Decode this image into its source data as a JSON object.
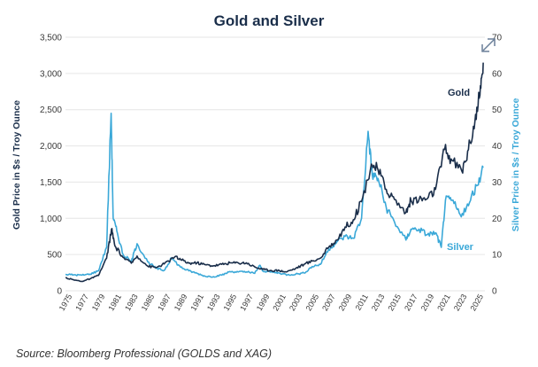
{
  "chart_data": {
    "type": "line",
    "title": "Gold and Silver",
    "ylabel_left": "Gold Price in $s / Troy Ounce",
    "ylabel_right": "Silver Price in $s / Troy Ounce",
    "ylim_left": [
      0,
      3500
    ],
    "ylim_right": [
      0,
      70
    ],
    "yticks_left": [
      "0",
      "500",
      "1,000",
      "1,500",
      "2,000",
      "2,500",
      "3,000",
      "3,500"
    ],
    "yticks_left_values": [
      0,
      500,
      1000,
      1500,
      2000,
      2500,
      3000,
      3500
    ],
    "yticks_right": [
      "0",
      "10",
      "20",
      "30",
      "40",
      "50",
      "60",
      "70"
    ],
    "yticks_right_values": [
      0,
      10,
      20,
      30,
      40,
      50,
      60,
      70
    ],
    "xlim": [
      1974.5,
      2025.5
    ],
    "xticks": [
      "1975",
      "1977",
      "1979",
      "1981",
      "1983",
      "1985",
      "1987",
      "1989",
      "1991",
      "1993",
      "1995",
      "1997",
      "1999",
      "2001",
      "2003",
      "2005",
      "2007",
      "2009",
      "2011",
      "2013",
      "2015",
      "2017",
      "2019",
      "2021",
      "2023",
      "2025"
    ],
    "xticks_values": [
      1975,
      1977,
      1979,
      1981,
      1983,
      1985,
      1987,
      1989,
      1991,
      1993,
      1995,
      1997,
      1999,
      2001,
      2003,
      2005,
      2007,
      2009,
      2011,
      2013,
      2015,
      2017,
      2019,
      2021,
      2023,
      2025
    ],
    "legend_gold": "Gold",
    "legend_silver": "Silver",
    "colors": {
      "gold": "#1a2e4a",
      "silver": "#3aa8d8",
      "grid": "#e6e6e6",
      "title": "#1a2e4a"
    },
    "series": [
      {
        "name": "Gold",
        "axis": "left",
        "x": [
          1974.5,
          1975.5,
          1976.5,
          1977.5,
          1978.5,
          1979.5,
          1980.1,
          1980.5,
          1981.5,
          1982.5,
          1983.2,
          1984.5,
          1985.5,
          1986.5,
          1987.8,
          1988.5,
          1989.5,
          1990.5,
          1991.5,
          1992.5,
          1993.5,
          1994.5,
          1995.5,
          1996.5,
          1997.5,
          1998.5,
          1999.5,
          2000.5,
          2001.3,
          2002.5,
          2003.5,
          2004.5,
          2005.5,
          2006.5,
          2007.5,
          2008.5,
          2009.5,
          2010.5,
          2011.7,
          2012.5,
          2013.5,
          2014.5,
          2015.9,
          2016.5,
          2017.5,
          2018.5,
          2019.5,
          2020.6,
          2021.5,
          2022.7,
          2023.5,
          2024.3,
          2024.9,
          2025.3
        ],
        "y": [
          180,
          150,
          130,
          165,
          210,
          450,
          850,
          620,
          460,
          380,
          480,
          340,
          320,
          370,
          470,
          430,
          380,
          385,
          360,
          345,
          365,
          385,
          385,
          385,
          330,
          295,
          280,
          280,
          260,
          310,
          365,
          410,
          450,
          600,
          700,
          880,
          980,
          1230,
          1750,
          1670,
          1400,
          1260,
          1080,
          1250,
          1260,
          1270,
          1400,
          1950,
          1800,
          1650,
          1950,
          2350,
          2700,
          3150
        ]
      },
      {
        "name": "Silver",
        "axis": "right",
        "x": [
          1974.5,
          1975.5,
          1976.5,
          1977.5,
          1978.5,
          1979.5,
          1980.05,
          1980.3,
          1980.8,
          1981.5,
          1982.5,
          1983.2,
          1984.5,
          1985.5,
          1986.5,
          1987.4,
          1988.5,
          1989.5,
          1990.5,
          1991.5,
          1992.5,
          1993.5,
          1994.5,
          1995.5,
          1996.5,
          1997.5,
          1998.1,
          1998.5,
          1999.5,
          2000.5,
          2001.5,
          2002.5,
          2003.5,
          2004.5,
          2005.5,
          2006.5,
          2007.5,
          2008.5,
          2009.5,
          2010.5,
          2011.3,
          2011.8,
          2012.5,
          2013.5,
          2014.5,
          2015.9,
          2016.5,
          2017.5,
          2018.5,
          2019.5,
          2020.2,
          2020.7,
          2021.5,
          2022.5,
          2023.5,
          2024.5,
          2025.3
        ],
        "y": [
          4.5,
          4.4,
          4.3,
          4.6,
          5.5,
          12,
          49,
          20,
          16,
          10,
          8,
          13,
          8,
          6.2,
          5.6,
          9,
          6.5,
          5.5,
          4.8,
          4.0,
          3.9,
          4.3,
          5.3,
          5.2,
          5.2,
          4.8,
          7,
          5.5,
          5.2,
          4.9,
          4.4,
          4.6,
          4.9,
          6.7,
          7.3,
          11.5,
          13.5,
          15,
          14.5,
          20,
          44,
          32,
          31,
          23,
          19,
          14,
          17,
          17,
          15.5,
          16,
          12,
          25,
          25,
          21,
          23.5,
          29,
          34
        ]
      }
    ]
  },
  "source_text": "Source: Bloomberg Professional (GOLDS and XAG)"
}
